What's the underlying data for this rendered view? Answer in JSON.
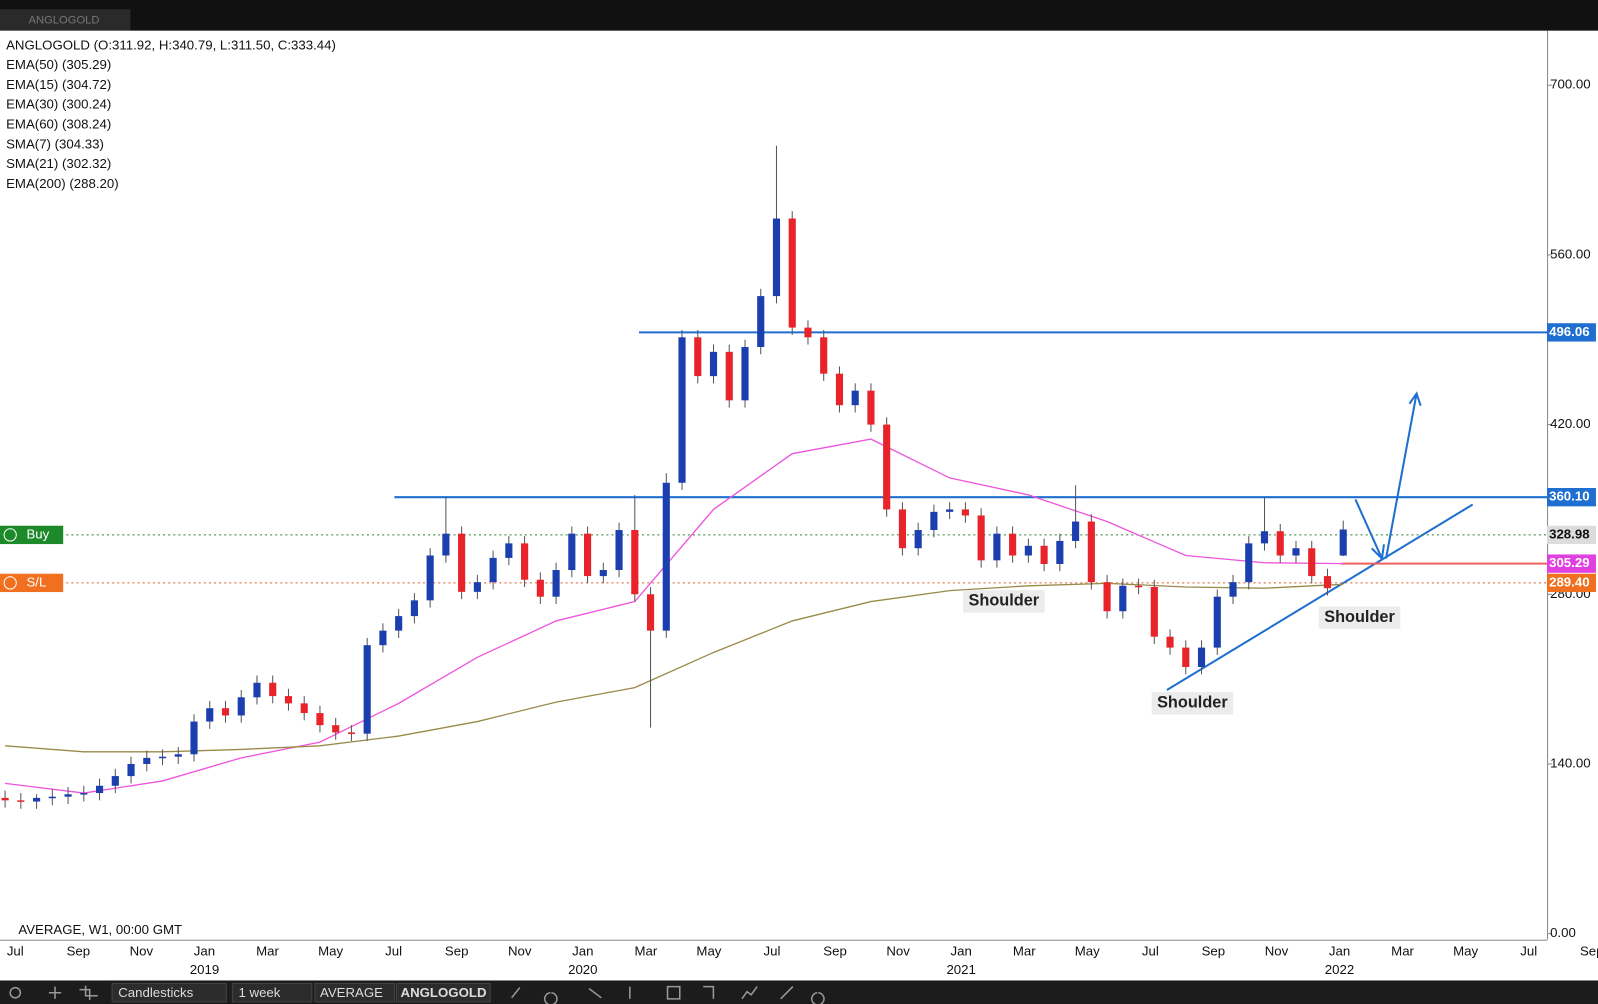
{
  "tab": "ANGLOGOLD",
  "chart_data": {
    "type": "candlestick",
    "legend": [
      "ANGLOGOLD (O:311.92, H:340.79, L:311.50, C:333.44)",
      "EMA(50) (305.29)",
      "EMA(15) (304.72)",
      "EMA(30) (300.24)",
      "EMA(60) (308.24)",
      "SMA(7) (304.33)",
      "SMA(21) (302.32)",
      "EMA(200) (288.20)"
    ],
    "open": [
      112,
      110,
      109,
      112,
      113,
      115,
      116,
      122,
      130,
      140,
      145,
      146,
      148,
      175,
      186,
      180,
      195,
      207,
      196,
      190,
      182,
      172,
      166,
      165,
      238,
      250,
      262,
      275,
      312,
      330,
      282,
      290,
      310,
      322,
      292,
      278,
      300,
      330,
      295,
      300,
      333,
      280,
      250,
      372,
      492,
      460,
      480,
      440,
      484,
      526,
      590,
      500,
      492,
      462,
      436,
      448,
      420,
      350,
      318,
      333,
      348,
      350,
      345,
      308,
      330,
      312,
      320,
      305,
      324,
      340,
      290,
      266,
      287,
      286,
      245,
      236,
      220,
      236,
      278,
      290,
      322,
      332,
      312,
      318,
      295,
      311.92
    ],
    "high": [
      118,
      116,
      115,
      119,
      121,
      122,
      128,
      136,
      146,
      151,
      152,
      154,
      181,
      192,
      192,
      201,
      213,
      213,
      202,
      196,
      188,
      178,
      172,
      244,
      256,
      268,
      281,
      318,
      360,
      336,
      296,
      316,
      328,
      328,
      298,
      306,
      336,
      336,
      306,
      339,
      362,
      286,
      380,
      498,
      498,
      486,
      486,
      490,
      532,
      650,
      596,
      506,
      498,
      468,
      454,
      454,
      426,
      356,
      339,
      354,
      356,
      356,
      351,
      336,
      336,
      326,
      326,
      330,
      370,
      346,
      296,
      293,
      293,
      292,
      251,
      242,
      242,
      284,
      296,
      328,
      360,
      338,
      324,
      324,
      301,
      340.79
    ],
    "low": [
      104,
      103,
      103,
      106,
      107,
      109,
      110,
      116,
      124,
      134,
      139,
      140,
      142,
      169,
      174,
      174,
      189,
      190,
      184,
      176,
      166,
      160,
      159,
      159,
      232,
      244,
      256,
      269,
      306,
      276,
      276,
      284,
      304,
      286,
      272,
      272,
      294,
      289,
      289,
      294,
      274,
      170,
      244,
      366,
      454,
      454,
      434,
      434,
      478,
      520,
      494,
      486,
      456,
      430,
      430,
      414,
      344,
      312,
      312,
      327,
      342,
      339,
      302,
      302,
      306,
      306,
      299,
      299,
      318,
      284,
      260,
      260,
      280,
      239,
      230,
      214,
      214,
      230,
      272,
      284,
      316,
      306,
      306,
      289,
      279,
      311.5
    ],
    "close": [
      110,
      109,
      112,
      113,
      115,
      116,
      122,
      130,
      140,
      145,
      146,
      148,
      175,
      186,
      180,
      195,
      207,
      196,
      190,
      182,
      172,
      166,
      165,
      238,
      250,
      262,
      275,
      312,
      330,
      282,
      290,
      310,
      322,
      292,
      278,
      300,
      330,
      295,
      300,
      333,
      280,
      250,
      372,
      492,
      460,
      480,
      440,
      484,
      526,
      590,
      500,
      492,
      462,
      436,
      448,
      420,
      350,
      318,
      333,
      348,
      350,
      345,
      308,
      330,
      312,
      320,
      305,
      324,
      340,
      290,
      266,
      287,
      286,
      245,
      236,
      220,
      236,
      278,
      290,
      322,
      332,
      312,
      318,
      295,
      285,
      333.44
    ],
    "up_color": "#1b3fae",
    "down_color": "#e8232a",
    "lines": [
      {
        "color": "#ee55dd",
        "values": [
          124,
          116,
          126,
          145,
          158,
          190,
          228,
          258,
          274,
          350,
          396,
          408,
          376,
          362,
          340,
          312,
          306,
          305.29
        ]
      },
      {
        "color": "#9a8a4a",
        "values": [
          155,
          150,
          150,
          152,
          155,
          163,
          175,
          191,
          203,
          232,
          258,
          274,
          283,
          287,
          289,
          286,
          285,
          288.2
        ]
      }
    ],
    "levels": [
      {
        "price": 496.06,
        "line_color": "#1f6fd0",
        "box_color": "#1f6fd0",
        "text_color": "#ffffff",
        "dotted": false
      },
      {
        "price": {
          "value": 360.1,
          "label": "360.10"
        },
        "line_color": "#1f6fd0",
        "box_color": "#1f6fd0",
        "text_color": "#ffffff",
        "dotted": false
      },
      {
        "price": 328.98,
        "line_color": "#2e7d32",
        "box_color": "#dcdcdc",
        "text_color": "#111111",
        "dotted": true
      },
      {
        "price": 305.29,
        "line_color": "#f06060",
        "box_color": "#e040e0",
        "text_color": "#ffffff",
        "dotted": false
      },
      {
        "price": {
          "value": 289.4,
          "label": "289.40"
        },
        "line_color": "#e05a2a",
        "box_color": "#f07020",
        "text_color": "#ffffff",
        "dotted": true
      }
    ],
    "ylim": [
      -5,
      745
    ],
    "yticks": [
      {
        "value": 0,
        "label": "0.00"
      },
      {
        "value": 140,
        "label": "140.00"
      },
      {
        "value": 280,
        "label": "280.00"
      },
      {
        "value": 420,
        "label": "420.00"
      },
      {
        "value": 560,
        "label": "560.00"
      },
      {
        "value": 700,
        "label": "700.00"
      }
    ],
    "xticks": [
      "Jul",
      "Sep",
      "Nov",
      "Jan",
      "Mar",
      "May",
      "Jul",
      "Sep",
      "Nov",
      "Jan",
      "Mar",
      "May",
      "Jul",
      "Sep",
      "Nov",
      "Jan",
      "Mar",
      "May",
      "Jul",
      "Sep",
      "Nov",
      "Jan",
      "Mar",
      "May",
      "Jul",
      "Sep"
    ],
    "xtick_years": [
      null,
      null,
      null,
      "2019",
      null,
      null,
      null,
      null,
      null,
      "2020",
      null,
      null,
      null,
      null,
      null,
      "2021",
      null,
      null,
      null,
      null,
      null,
      "2022",
      null,
      null,
      null,
      null
    ],
    "annotations": [
      "Shoulder",
      "Shoulder",
      "Shoulder"
    ],
    "buy_label": "Buy",
    "sl_label": "S/L",
    "footer": "AVERAGE, W1, 00:00 GMT"
  },
  "toolbar": [
    "Candlesticks",
    "1 week",
    "AVERAGE",
    "ANGLOGOLD"
  ]
}
